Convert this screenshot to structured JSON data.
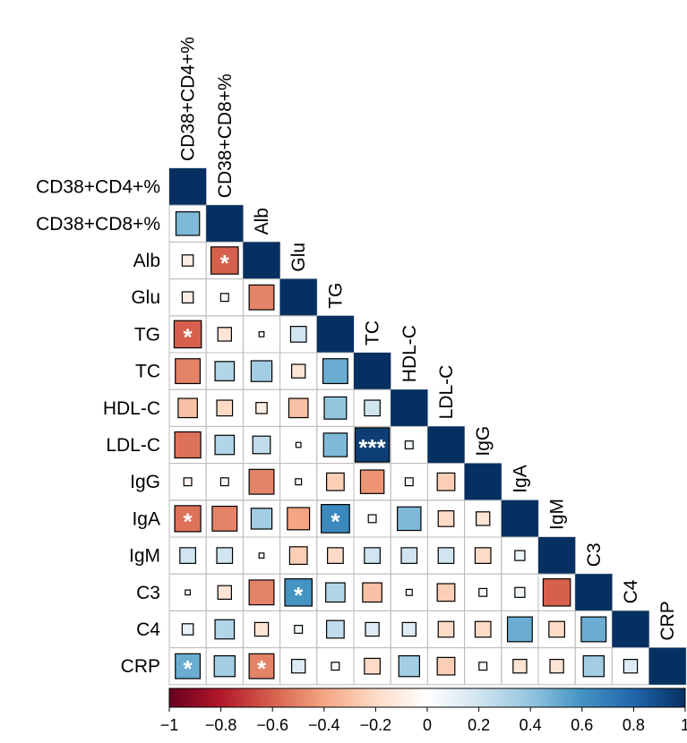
{
  "chart_data": {
    "type": "heatmap",
    "subtype": "correlation-matrix-lower-triangle",
    "variables": [
      "CD38+CD4+%",
      "CD38+CD8+%",
      "Alb",
      "Glu",
      "TG",
      "TC",
      "HDL-C",
      "LDL-C",
      "IgG",
      "IgA",
      "IgM",
      "C3",
      "C4",
      "CRP"
    ],
    "matrix": [
      [
        1
      ],
      [
        0.45,
        1
      ],
      [
        -0.1,
        -0.6,
        1
      ],
      [
        -0.1,
        0.05,
        -0.5,
        1
      ],
      [
        -0.6,
        -0.15,
        0.02,
        0.2,
        1
      ],
      [
        -0.5,
        0.3,
        0.35,
        -0.15,
        0.5,
        1
      ],
      [
        -0.3,
        -0.2,
        -0.1,
        -0.3,
        0.4,
        0.2,
        1
      ],
      [
        -0.55,
        0.3,
        0.25,
        0.02,
        0.45,
        0.95,
        0.05,
        1
      ],
      [
        -0.05,
        -0.05,
        -0.5,
        -0.03,
        -0.25,
        -0.45,
        0.05,
        -0.25,
        1
      ],
      [
        -0.55,
        -0.5,
        0.35,
        -0.4,
        0.65,
        0.05,
        0.45,
        -0.2,
        -0.15,
        1
      ],
      [
        0.2,
        0.2,
        0.02,
        -0.25,
        -0.2,
        0.2,
        0.2,
        0.2,
        -0.2,
        0.08,
        1
      ],
      [
        -0.02,
        -0.15,
        -0.5,
        0.6,
        0.3,
        -0.3,
        0.03,
        -0.25,
        0.05,
        0.08,
        -0.6,
        1
      ],
      [
        0.1,
        0.3,
        -0.15,
        0.05,
        0.25,
        0.15,
        0.15,
        -0.2,
        -0.2,
        0.5,
        -0.2,
        0.5,
        1
      ],
      [
        0.5,
        0.35,
        -0.5,
        0.15,
        0.05,
        -0.2,
        0.35,
        -0.25,
        0.05,
        -0.15,
        -0.15,
        0.35,
        0.15,
        1
      ]
    ],
    "significance": [
      {
        "row": "Alb",
        "col": "CD38+CD8+%",
        "mark": "*"
      },
      {
        "row": "TG",
        "col": "CD38+CD4+%",
        "mark": "*"
      },
      {
        "row": "LDL-C",
        "col": "TC",
        "mark": "***"
      },
      {
        "row": "IgA",
        "col": "CD38+CD4+%",
        "mark": "*"
      },
      {
        "row": "IgA",
        "col": "TG",
        "mark": "*"
      },
      {
        "row": "C3",
        "col": "Glu",
        "mark": "*"
      },
      {
        "row": "CRP",
        "col": "CD38+CD4+%",
        "mark": "*"
      },
      {
        "row": "CRP",
        "col": "Alb",
        "mark": "*"
      }
    ],
    "colorbar": {
      "range": [
        -1,
        1
      ],
      "ticks": [
        "−1",
        "−0.8",
        "−0.6",
        "−0.4",
        "−0.2",
        "0",
        "0.2",
        "0.4",
        "0.6",
        "0.8",
        "1"
      ],
      "tick_values": [
        -1,
        -0.8,
        -0.6,
        -0.4,
        -0.2,
        0,
        0.2,
        0.4,
        0.6,
        0.8,
        1
      ],
      "low_color": "#67001f",
      "mid_color": "#ffffff",
      "high_color": "#053061",
      "placement": "bottom"
    },
    "title": "",
    "xlabel": "",
    "ylabel": ""
  }
}
